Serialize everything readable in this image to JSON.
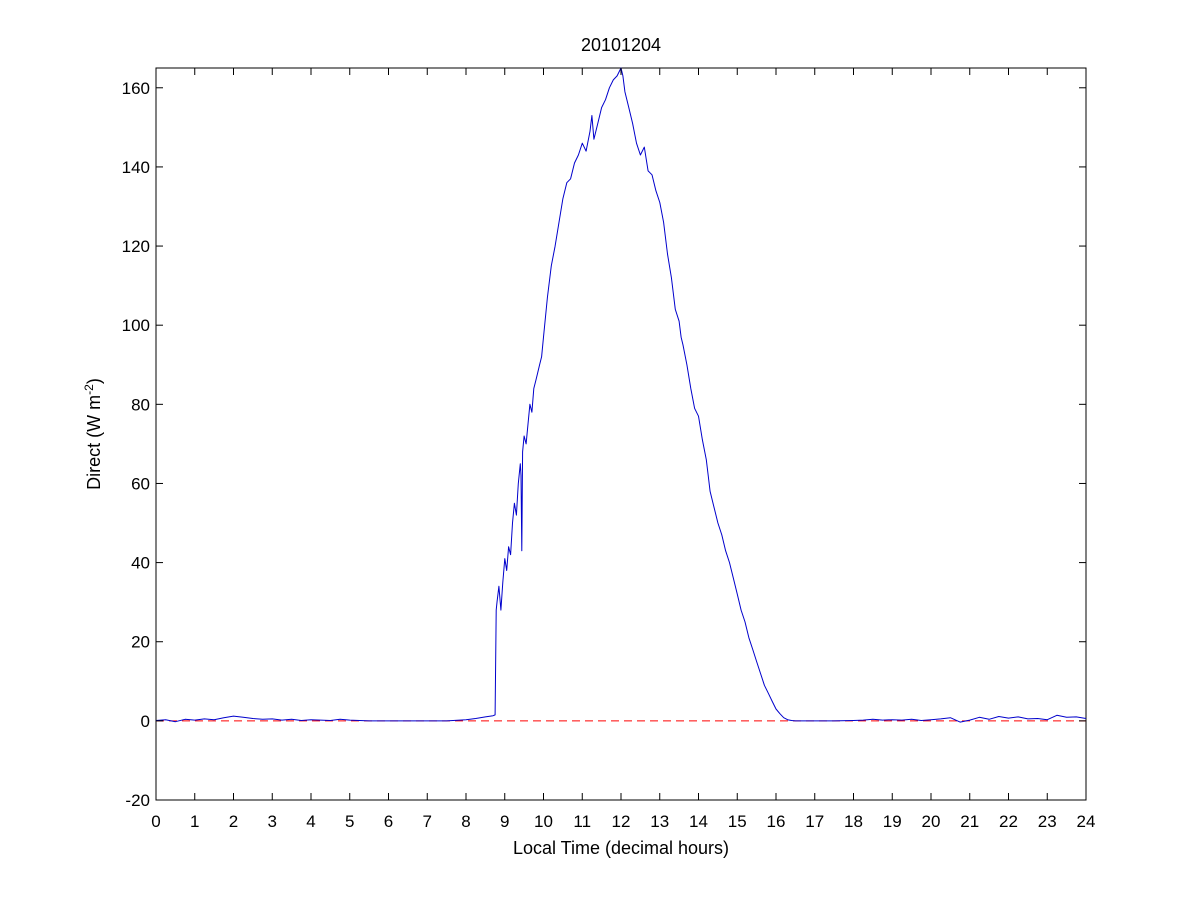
{
  "chart_data": {
    "type": "line",
    "title": "20101204",
    "xlabel": "Local Time (decimal hours)",
    "ylabel_main": "Direct (W m",
    "ylabel_sup": "-2",
    "ylabel_close": ")",
    "xlim": [
      0,
      24
    ],
    "ylim": [
      -20,
      165
    ],
    "xticks": [
      0,
      1,
      2,
      3,
      4,
      5,
      6,
      7,
      8,
      9,
      10,
      11,
      12,
      13,
      14,
      15,
      16,
      17,
      18,
      19,
      20,
      21,
      22,
      23,
      24
    ],
    "yticks": [
      -20,
      0,
      20,
      40,
      60,
      80,
      100,
      120,
      140,
      160
    ],
    "grid": false,
    "colors": {
      "series": "#0000cc",
      "reference": "#ff0000"
    },
    "reference_line": {
      "y": 0,
      "style": "dashed"
    },
    "series": [
      {
        "x": [
          0.0,
          0.25,
          0.5,
          0.75,
          1.0,
          1.25,
          1.5,
          1.75,
          2.0,
          2.25,
          2.5,
          2.75,
          3.0,
          3.25,
          3.5,
          3.75,
          4.0,
          4.25,
          4.5,
          4.75,
          5.0,
          5.25,
          5.5,
          5.75,
          6.0,
          6.5,
          7.0,
          7.5,
          8.0,
          8.25,
          8.5,
          8.7,
          8.75,
          8.78,
          8.8,
          8.85,
          8.9,
          8.95,
          9.0,
          9.05,
          9.1,
          9.15,
          9.2,
          9.25,
          9.3,
          9.35,
          9.4,
          9.42,
          9.44,
          9.46,
          9.5,
          9.55,
          9.6,
          9.65,
          9.7,
          9.75,
          9.8,
          9.85,
          9.9,
          9.95,
          10.0,
          10.1,
          10.2,
          10.3,
          10.4,
          10.5,
          10.6,
          10.7,
          10.8,
          10.9,
          11.0,
          11.1,
          11.2,
          11.25,
          11.3,
          11.4,
          11.5,
          11.6,
          11.7,
          11.8,
          11.9,
          12.0,
          12.05,
          12.1,
          12.2,
          12.3,
          12.4,
          12.5,
          12.6,
          12.7,
          12.8,
          12.9,
          13.0,
          13.1,
          13.2,
          13.3,
          13.4,
          13.5,
          13.55,
          13.6,
          13.7,
          13.8,
          13.9,
          14.0,
          14.1,
          14.2,
          14.25,
          14.3,
          14.4,
          14.5,
          14.6,
          14.7,
          14.8,
          14.9,
          15.0,
          15.1,
          15.2,
          15.3,
          15.4,
          15.5,
          15.6,
          15.7,
          15.8,
          15.9,
          16.0,
          16.1,
          16.2,
          16.3,
          16.4,
          16.5,
          16.75,
          17.0,
          17.5,
          18.0,
          18.25,
          18.5,
          18.75,
          19.0,
          19.25,
          19.5,
          19.75,
          20.0,
          20.25,
          20.5,
          20.75,
          21.0,
          21.25,
          21.5,
          21.75,
          22.0,
          22.25,
          22.5,
          22.75,
          23.0,
          23.25,
          23.5,
          23.75,
          24.0
        ],
        "y": [
          0.1,
          0.3,
          -0.2,
          0.4,
          0.2,
          0.5,
          0.3,
          0.8,
          1.2,
          0.9,
          0.6,
          0.4,
          0.5,
          0.2,
          0.4,
          0.1,
          0.3,
          0.2,
          0.1,
          0.4,
          0.2,
          0.1,
          0.0,
          0.0,
          0.0,
          0.0,
          0.0,
          0.0,
          0.3,
          0.6,
          1.0,
          1.3,
          1.5,
          28.0,
          30.0,
          34.0,
          28.0,
          35.0,
          41.0,
          38.0,
          44.0,
          42.0,
          50.0,
          55.0,
          52.0,
          60.0,
          65.0,
          62.0,
          43.0,
          68.0,
          72.0,
          70.0,
          75.0,
          80.0,
          78.0,
          84.0,
          86.0,
          88.0,
          90.0,
          92.0,
          97.0,
          107.0,
          115.0,
          120.0,
          126.0,
          132.0,
          136.0,
          137.0,
          141.0,
          143.0,
          146.0,
          144.0,
          149.0,
          153.0,
          147.0,
          151.0,
          155.0,
          157.0,
          160.0,
          162.0,
          163.0,
          165.0,
          163.0,
          159.0,
          155.0,
          151.0,
          146.0,
          143.0,
          145.0,
          139.0,
          138.0,
          134.0,
          131.0,
          126.0,
          118.0,
          112.0,
          104.0,
          101.0,
          97.0,
          95.0,
          90.0,
          84.0,
          79.0,
          77.0,
          71.0,
          66.0,
          62.0,
          58.0,
          54.0,
          50.0,
          47.0,
          43.0,
          40.0,
          36.0,
          32.0,
          28.0,
          25.0,
          21.0,
          18.0,
          15.0,
          12.0,
          9.0,
          7.0,
          5.0,
          3.0,
          1.8,
          0.8,
          0.3,
          0.1,
          0.0,
          0.0,
          0.0,
          0.0,
          0.1,
          0.2,
          0.4,
          0.2,
          0.3,
          0.2,
          0.4,
          0.1,
          0.3,
          0.5,
          0.8,
          -0.3,
          0.2,
          0.9,
          0.4,
          1.1,
          0.7,
          1.0,
          0.5,
          0.6,
          0.3,
          1.4,
          0.9,
          1.0,
          0.6
        ]
      }
    ]
  }
}
